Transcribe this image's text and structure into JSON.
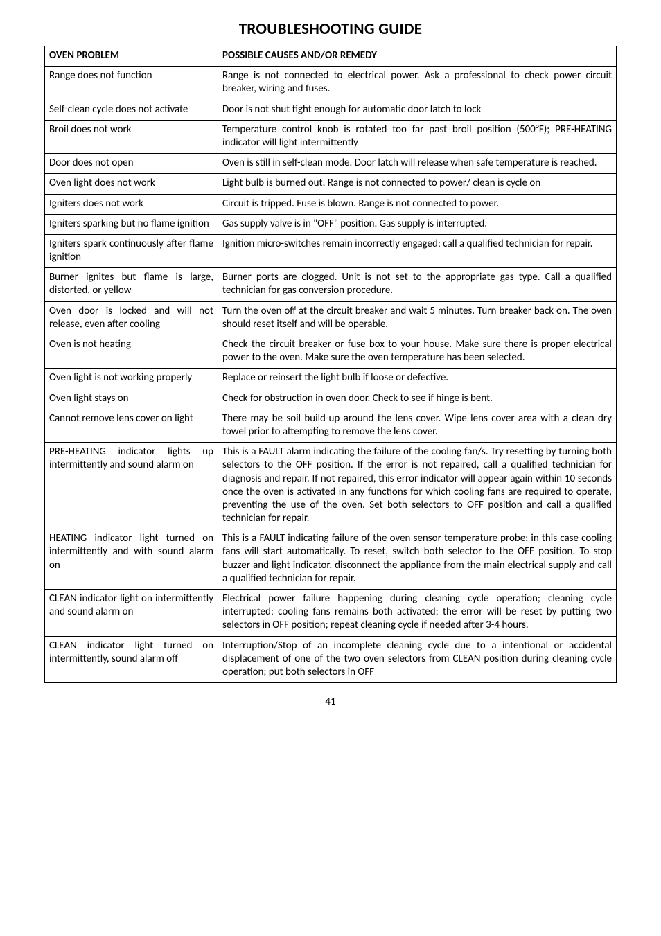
{
  "title": "TROUBLESHOOTING GUIDE",
  "table": {
    "headers": {
      "col1": "OVEN PROBLEM",
      "col2": "POSSIBLE CAUSES AND/OR REMEDY"
    },
    "rows": [
      {
        "problem": "Range does not function",
        "remedy": "Range is not connected to electrical power. Ask a professional to check power circuit breaker, wiring and fuses."
      },
      {
        "problem": "Self-clean cycle does not activate",
        "remedy": "Door is not shut tight enough for automatic door latch to lock"
      },
      {
        "problem": "Broil does not work",
        "remedy": "Temperature control knob is rotated too far past broil position (500°F); PRE-HEATING indicator will light intermittently"
      },
      {
        "problem": "Door does not open",
        "remedy": "Oven is still in self-clean mode. Door latch will release when safe temperature is reached."
      },
      {
        "problem": "Oven light does not work",
        "remedy": "Light bulb is burned out. Range is not connected to power/ clean is cycle on"
      },
      {
        "problem": "Igniters does not work",
        "remedy": "Circuit is tripped. Fuse is blown. Range is not connected to power."
      },
      {
        "problem": "Igniters sparking but no flame ignition",
        "remedy": "Gas supply valve is in \"OFF\" position. Gas supply is interrupted."
      },
      {
        "problem": "Igniters spark continuously after flame ignition",
        "remedy": "Ignition micro-switches remain incorrectly engaged; call a qualified technician for repair."
      },
      {
        "problem": "Burner ignites but flame is large, distorted, or yellow",
        "remedy": "Burner ports are clogged. Unit is not set to the appropriate gas type. Call a qualified technician for gas conversion procedure."
      },
      {
        "problem": "Oven door is locked and will not release, even after cooling",
        "remedy": "Turn the oven off at the circuit breaker and wait 5 minutes. Turn breaker back on. The oven should reset itself and will be operable."
      },
      {
        "problem": "Oven is not heating",
        "remedy": "Check the circuit breaker or fuse box to your house. Make sure there is proper electrical power to the oven. Make sure the oven temperature has been selected."
      },
      {
        "problem": "Oven light is not working properly",
        "remedy": "Replace or reinsert the light bulb if loose or defective."
      },
      {
        "problem": "Oven light stays on",
        "remedy": "Check for obstruction in oven door. Check to see if hinge is bent."
      },
      {
        "problem": "Cannot remove lens cover on light",
        "remedy": "There may be soil build-up around the lens cover. Wipe lens cover area with a clean dry towel prior to attempting to remove the lens cover."
      },
      {
        "problem": "PRE-HEATING indicator lights up intermittently and sound alarm on",
        "remedy": "This is a FAULT alarm indicating the failure of the cooling fan/s. Try resetting by turning both selectors to the OFF position. If the error is not repaired, call a qualified technician for diagnosis and repair. If not repaired, this error indicator will appear again within 10 seconds once the oven is activated in any functions for which cooling fans are required to operate, preventing the use of the oven. Set both selectors to OFF position and call a qualified technician for repair."
      },
      {
        "problem": "HEATING indicator light turned on intermittently and with sound alarm on",
        "remedy": "This is a FAULT indicating failure of the oven sensor temperature probe; in this case cooling fans will start automatically. To reset, switch both selector to the OFF position.  To stop buzzer and light indicator, disconnect the appliance from the main electrical supply and call a qualified technician for repair."
      },
      {
        "problem": "CLEAN indicator light on intermittently and sound alarm on",
        "remedy": "Electrical power failure happening during cleaning cycle operation; cleaning cycle interrupted; cooling fans remains both activated; the error will be reset by putting two selectors in OFF position; repeat cleaning cycle if needed after 3-4 hours."
      },
      {
        "problem": "CLEAN indicator light turned on intermittently, sound alarm off",
        "remedy": "Interruption/Stop of an incomplete cleaning cycle due to a intentional or accidental displacement of one of the two oven selectors from CLEAN position during cleaning cycle operation; put both selectors in OFF"
      }
    ]
  },
  "page_number": "41"
}
